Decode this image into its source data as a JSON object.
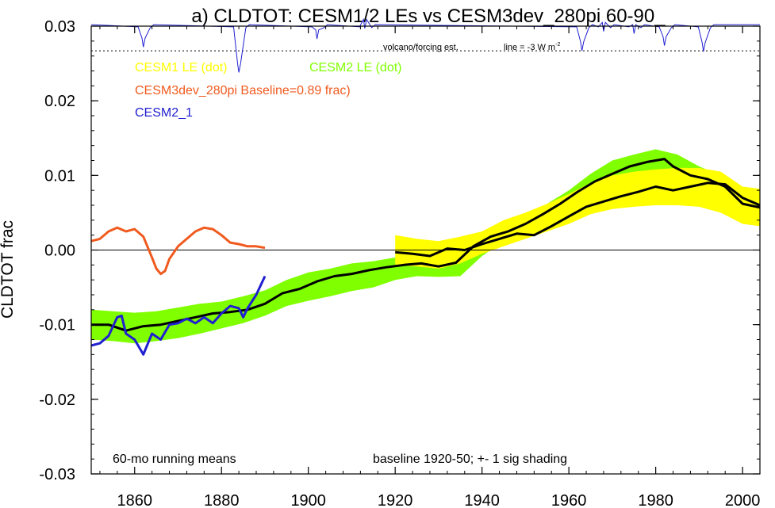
{
  "chart_data": {
    "type": "line",
    "title": "a) CLDTOT: CESM1/2 LEs vs CESM3dev_280pi 60-90_",
    "ylabel": "CLDTOT frac",
    "xlabel": "",
    "xlim": [
      1850,
      2004
    ],
    "ylim": [
      -0.03,
      0.03
    ],
    "x_ticks": [
      1860,
      1880,
      1900,
      1920,
      1940,
      1960,
      1980,
      2000
    ],
    "y_ticks": [
      -0.03,
      -0.02,
      -0.01,
      0.0,
      0.01,
      0.02,
      0.03
    ],
    "y_tick_labels": [
      "-0.03",
      "-0.02",
      "-0.01",
      "0.00",
      "0.01",
      "0.02",
      "0.03"
    ],
    "zero_line": true,
    "grid": false,
    "legend_entries": [
      {
        "label": "CESM1 LE (dot)",
        "color": "#ffff00"
      },
      {
        "label": "CESM2 LE (dot)",
        "color": "#80ff00"
      },
      {
        "label": "CESM3dev_280pi Baseline=0.89 frac)",
        "color": "#f05a1e"
      },
      {
        "label": "CESM2_1",
        "color": "#2020d0"
      }
    ],
    "annotations": {
      "volcano": "volcano/forcing est.",
      "forcing_line": "line = -3 W m",
      "forcing_line_sup": "-2",
      "running_mean": "60-mo running means",
      "baseline": "baseline 1920-50; +- 1 sig shading"
    },
    "volcano_threshold_y": 0.0267,
    "volcano_top_y": 0.0302,
    "volcano_events": [
      {
        "x": 1862,
        "y": 0.0272
      },
      {
        "x": 1884,
        "y": 0.0238
      },
      {
        "x": 1902,
        "y": 0.0283
      },
      {
        "x": 1913,
        "y": 0.0297
      },
      {
        "x": 1963,
        "y": 0.0267
      },
      {
        "x": 1968,
        "y": 0.0293
      },
      {
        "x": 1975,
        "y": 0.029
      },
      {
        "x": 1982,
        "y": 0.0274
      },
      {
        "x": 1991,
        "y": 0.0266
      }
    ],
    "series": [
      {
        "name": "CESM2 LE (dot)",
        "kind": "band",
        "color": "#80ff00",
        "x": [
          1850,
          1855,
          1860,
          1865,
          1870,
          1875,
          1880,
          1885,
          1890,
          1895,
          1900,
          1905,
          1910,
          1915,
          1920,
          1925,
          1930,
          1935,
          1940,
          1945,
          1950,
          1955,
          1960,
          1965,
          1970,
          1975,
          1980,
          1985,
          1990,
          1995,
          2000,
          2004
        ],
        "upper": [
          -0.008,
          -0.0082,
          -0.0084,
          -0.0082,
          -0.0077,
          -0.0072,
          -0.0069,
          -0.0062,
          -0.0054,
          -0.004,
          -0.003,
          -0.0025,
          -0.0018,
          -0.0015,
          -0.001,
          -0.0006,
          -0.0007,
          -0.0008,
          0.0015,
          0.0035,
          0.0048,
          0.0062,
          0.008,
          0.0102,
          0.012,
          0.0128,
          0.0135,
          0.0128,
          0.0112,
          0.01,
          0.0082,
          0.008
        ],
        "lower": [
          -0.012,
          -0.0122,
          -0.0125,
          -0.0122,
          -0.0118,
          -0.0112,
          -0.0105,
          -0.0098,
          -0.0088,
          -0.0075,
          -0.0068,
          -0.0062,
          -0.0055,
          -0.005,
          -0.004,
          -0.0035,
          -0.0036,
          -0.0035,
          -0.0008,
          0.0012,
          0.0025,
          0.004,
          0.006,
          0.0078,
          0.009,
          0.0095,
          0.01,
          0.009,
          0.0072,
          0.0062,
          0.0042,
          0.004
        ]
      },
      {
        "name": "CESM1 LE (dot)",
        "kind": "band",
        "color": "#ffff00",
        "x": [
          1920,
          1925,
          1930,
          1935,
          1940,
          1945,
          1950,
          1955,
          1960,
          1965,
          1970,
          1975,
          1980,
          1985,
          1990,
          1995,
          2000,
          2004
        ],
        "upper": [
          0.002,
          0.0015,
          0.0012,
          0.0018,
          0.0025,
          0.004,
          0.005,
          0.0062,
          0.0075,
          0.009,
          0.01,
          0.0105,
          0.0108,
          0.011,
          0.011,
          0.0105,
          0.0085,
          0.0082
        ],
        "lower": [
          -0.002,
          -0.0022,
          -0.0025,
          -0.0018,
          -0.0005,
          0.0005,
          0.0015,
          0.0025,
          0.0035,
          0.0048,
          0.0055,
          0.0058,
          0.006,
          0.006,
          0.0058,
          0.005,
          0.0035,
          0.0032
        ]
      },
      {
        "name": "",
        "kind": "line",
        "color": "#000000",
        "x": [
          1850,
          1854,
          1858,
          1862,
          1866,
          1870,
          1874,
          1878,
          1882,
          1886,
          1890,
          1894,
          1898,
          1902,
          1906,
          1910,
          1914,
          1918,
          1922,
          1926,
          1930,
          1934,
          1938,
          1942,
          1946,
          1950,
          1954,
          1958,
          1962,
          1966,
          1970,
          1974,
          1978,
          1980,
          1982,
          1984,
          1988,
          1992,
          1996,
          2000,
          2004
        ],
        "y": [
          -0.01,
          -0.01,
          -0.0108,
          -0.0102,
          -0.01,
          -0.0095,
          -0.009,
          -0.0085,
          -0.0083,
          -0.008,
          -0.0072,
          -0.0058,
          -0.0052,
          -0.0042,
          -0.0035,
          -0.0032,
          -0.0027,
          -0.0023,
          -0.002,
          -0.0018,
          -0.0022,
          -0.0017,
          0.0005,
          0.0018,
          0.0025,
          0.0035,
          0.0048,
          0.0062,
          0.0078,
          0.0092,
          0.0102,
          0.0112,
          0.0118,
          0.012,
          0.0122,
          0.0112,
          0.01,
          0.0095,
          0.0085,
          0.0062,
          0.0057
        ]
      },
      {
        "name": "",
        "kind": "line",
        "color": "#000000",
        "x": [
          1920,
          1924,
          1928,
          1932,
          1936,
          1940,
          1944,
          1948,
          1952,
          1956,
          1960,
          1964,
          1968,
          1972,
          1976,
          1980,
          1984,
          1988,
          1992,
          1996,
          2000,
          2004
        ],
        "y": [
          -0.0003,
          -0.0005,
          -0.0008,
          0.0002,
          0.0,
          0.0008,
          0.0015,
          0.0022,
          0.002,
          0.0032,
          0.0045,
          0.0058,
          0.0065,
          0.0072,
          0.0078,
          0.0085,
          0.008,
          0.0085,
          0.009,
          0.0088,
          0.007,
          0.006
        ]
      },
      {
        "name": "CESM3dev_280pi Baseline=0.89 frac)",
        "kind": "line",
        "color": "#f05a1e",
        "x": [
          1850,
          1852,
          1854,
          1856,
          1858,
          1860,
          1862,
          1864,
          1865,
          1866,
          1867,
          1868,
          1870,
          1872,
          1874,
          1876,
          1878,
          1880,
          1882,
          1884,
          1886,
          1888,
          1890
        ],
        "y": [
          0.0012,
          0.0015,
          0.0025,
          0.003,
          0.0025,
          0.0028,
          0.0018,
          -0.001,
          -0.0025,
          -0.0032,
          -0.0028,
          -0.0012,
          0.0005,
          0.0015,
          0.0025,
          0.003,
          0.0028,
          0.002,
          0.001,
          0.0008,
          0.0005,
          0.0005,
          0.0003
        ]
      },
      {
        "name": "CESM2_1",
        "kind": "line",
        "color": "#2020d0",
        "x": [
          1850,
          1852,
          1854,
          1856,
          1857,
          1858,
          1860,
          1862,
          1864,
          1866,
          1868,
          1870,
          1872,
          1874,
          1876,
          1878,
          1880,
          1882,
          1884,
          1885,
          1886,
          1888,
          1890
        ],
        "y": [
          -0.0128,
          -0.0125,
          -0.0115,
          -0.009,
          -0.0088,
          -0.0112,
          -0.012,
          -0.014,
          -0.0112,
          -0.012,
          -0.01,
          -0.0098,
          -0.0092,
          -0.0098,
          -0.009,
          -0.0098,
          -0.0085,
          -0.0075,
          -0.0078,
          -0.009,
          -0.0078,
          -0.006,
          -0.0035
        ]
      }
    ]
  }
}
